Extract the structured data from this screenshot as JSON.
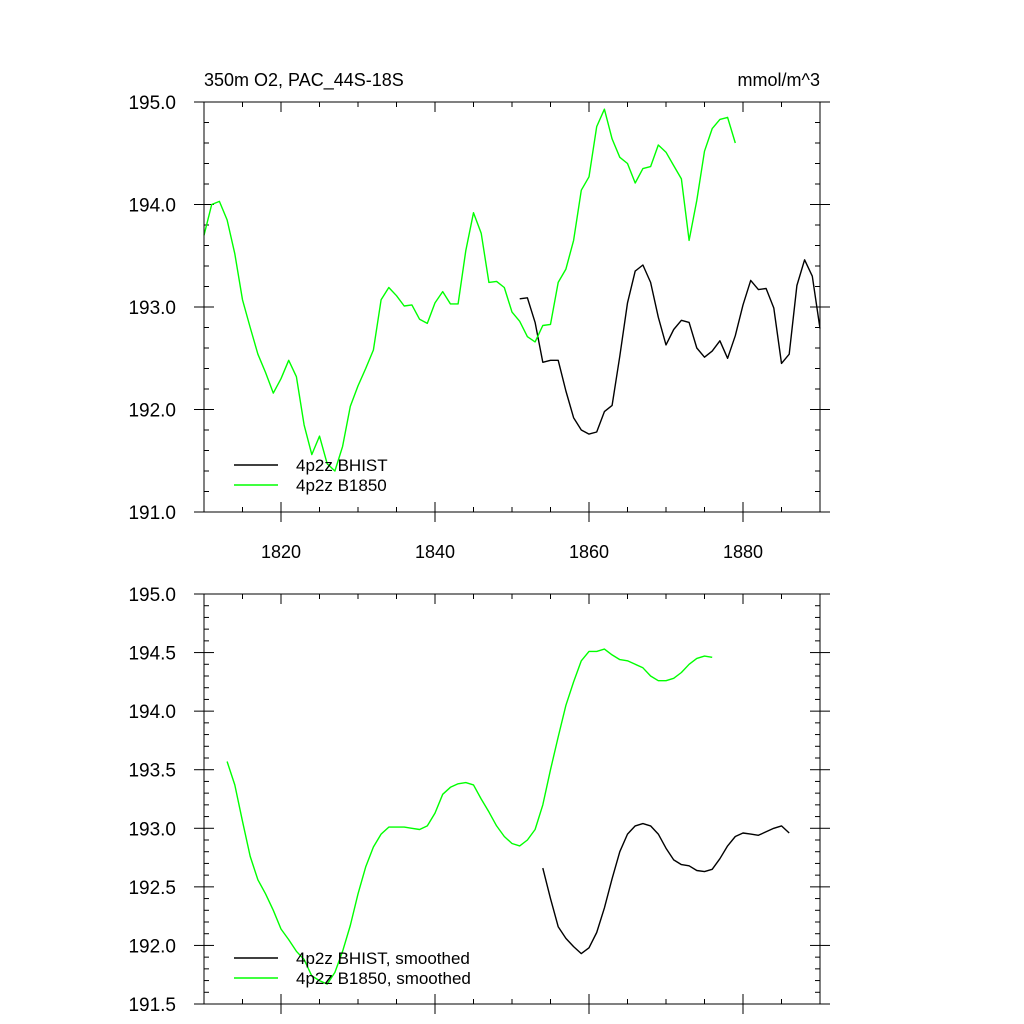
{
  "chart_data": [
    {
      "type": "line",
      "title_left": "350m O2, PAC_44S-18S",
      "title_right": "mmol/m^3",
      "xlim": [
        1810,
        1890
      ],
      "ylim": [
        191.0,
        195.0
      ],
      "xticks": [
        1820,
        1840,
        1860,
        1880
      ],
      "xtick_labels": [
        "1820",
        "1840",
        "1860",
        "1880"
      ],
      "yticks": [
        191.0,
        192.0,
        193.0,
        194.0,
        195.0
      ],
      "ytick_labels": [
        "191.0",
        "192.0",
        "193.0",
        "194.0",
        "195.0"
      ],
      "legend_position": "bottom-left",
      "series": [
        {
          "name": "4p2z BHIST",
          "color": "#000000",
          "x": [
            1851,
            1852,
            1853,
            1854,
            1855,
            1856,
            1857,
            1858,
            1859,
            1860,
            1861,
            1862,
            1863,
            1864,
            1865,
            1866,
            1867,
            1868,
            1869,
            1870,
            1871,
            1872,
            1873,
            1874,
            1875,
            1876,
            1877,
            1878,
            1879,
            1880,
            1881,
            1882,
            1883,
            1884,
            1885,
            1886,
            1887,
            1888,
            1889,
            1890
          ],
          "y": [
            193.08,
            193.09,
            192.85,
            192.46,
            192.48,
            192.48,
            192.18,
            191.92,
            191.8,
            191.76,
            191.78,
            191.98,
            192.04,
            192.52,
            193.04,
            193.35,
            193.41,
            193.24,
            192.9,
            192.63,
            192.78,
            192.87,
            192.85,
            192.6,
            192.51,
            192.57,
            192.67,
            192.5,
            192.72,
            193.02,
            193.26,
            193.17,
            193.18,
            192.99,
            192.45,
            192.54,
            193.21,
            193.46,
            193.3,
            192.79
          ]
        },
        {
          "name": "4p2z B1850",
          "color": "#00ff00",
          "x": [
            1810,
            1811,
            1812,
            1813,
            1814,
            1815,
            1816,
            1817,
            1818,
            1819,
            1820,
            1821,
            1822,
            1823,
            1824,
            1825,
            1826,
            1827,
            1828,
            1829,
            1830,
            1831,
            1832,
            1833,
            1834,
            1835,
            1836,
            1837,
            1838,
            1839,
            1840,
            1841,
            1842,
            1843,
            1844,
            1845,
            1846,
            1847,
            1848,
            1849,
            1850,
            1851,
            1852,
            1853,
            1854,
            1855,
            1856,
            1857,
            1858,
            1859,
            1860,
            1861,
            1862,
            1863,
            1864,
            1865,
            1866,
            1867,
            1868,
            1869,
            1870,
            1871,
            1872,
            1873,
            1874,
            1875,
            1876,
            1877,
            1878,
            1879
          ],
          "y": [
            193.7,
            194.0,
            194.03,
            193.85,
            193.52,
            193.07,
            192.8,
            192.54,
            192.36,
            192.16,
            192.3,
            192.48,
            192.32,
            191.85,
            191.56,
            191.74,
            191.47,
            191.4,
            191.64,
            192.03,
            192.23,
            192.4,
            192.58,
            193.07,
            193.19,
            193.11,
            193.01,
            193.02,
            192.88,
            192.84,
            193.04,
            193.15,
            193.03,
            193.03,
            193.55,
            193.92,
            193.72,
            193.24,
            193.25,
            193.19,
            192.95,
            192.86,
            192.71,
            192.66,
            192.82,
            192.83,
            193.24,
            193.37,
            193.65,
            194.14,
            194.27,
            194.76,
            194.93,
            194.64,
            194.46,
            194.4,
            194.21,
            194.35,
            194.37,
            194.58,
            194.51,
            194.38,
            194.25,
            193.65,
            194.04,
            194.52,
            194.74,
            194.83,
            194.85,
            194.6
          ]
        }
      ]
    },
    {
      "type": "line",
      "xlim": [
        1810,
        1890
      ],
      "ylim": [
        191.5,
        195.0
      ],
      "xticks": [
        1820,
        1840,
        1860,
        1880
      ],
      "yticks": [
        191.5,
        192.0,
        192.5,
        193.0,
        193.5,
        194.0,
        194.5,
        195.0
      ],
      "ytick_labels": [
        "191.5",
        "192.0",
        "192.5",
        "193.0",
        "193.5",
        "194.0",
        "194.5",
        "195.0"
      ],
      "legend_position": "bottom-left",
      "series": [
        {
          "name": "4p2z BHIST, smoothed",
          "color": "#000000",
          "x": [
            1854,
            1855,
            1856,
            1857,
            1858,
            1859,
            1860,
            1861,
            1862,
            1863,
            1864,
            1865,
            1866,
            1867,
            1868,
            1869,
            1870,
            1871,
            1872,
            1873,
            1874,
            1875,
            1876,
            1877,
            1878,
            1879,
            1880,
            1881,
            1882,
            1883,
            1884,
            1885,
            1886
          ],
          "y": [
            192.66,
            192.4,
            192.16,
            192.06,
            191.99,
            191.93,
            191.98,
            192.11,
            192.32,
            192.57,
            192.8,
            192.95,
            193.02,
            193.04,
            193.02,
            192.95,
            192.83,
            192.73,
            192.69,
            192.68,
            192.64,
            192.63,
            192.65,
            192.74,
            192.85,
            192.93,
            192.96,
            192.95,
            192.94,
            192.97,
            193.0,
            193.02,
            192.96
          ]
        },
        {
          "name": "4p2z B1850, smoothed",
          "color": "#00ff00",
          "x": [
            1813,
            1814,
            1815,
            1816,
            1817,
            1818,
            1819,
            1820,
            1821,
            1822,
            1823,
            1824,
            1825,
            1826,
            1827,
            1828,
            1829,
            1830,
            1831,
            1832,
            1833,
            1834,
            1835,
            1836,
            1837,
            1838,
            1839,
            1840,
            1841,
            1842,
            1843,
            1844,
            1845,
            1846,
            1847,
            1848,
            1849,
            1850,
            1851,
            1852,
            1853,
            1854,
            1855,
            1856,
            1857,
            1858,
            1859,
            1860,
            1861,
            1862,
            1863,
            1864,
            1865,
            1866,
            1867,
            1868,
            1869,
            1870,
            1871,
            1872,
            1873,
            1874,
            1875,
            1876
          ],
          "y": [
            193.57,
            193.37,
            193.06,
            192.76,
            192.56,
            192.44,
            192.3,
            192.14,
            192.05,
            191.95,
            191.88,
            191.74,
            191.7,
            191.67,
            191.77,
            191.95,
            192.17,
            192.44,
            192.67,
            192.84,
            192.95,
            193.01,
            193.01,
            193.01,
            193.0,
            192.99,
            193.02,
            193.13,
            193.29,
            193.35,
            193.38,
            193.39,
            193.37,
            193.25,
            193.14,
            193.02,
            192.93,
            192.87,
            192.85,
            192.9,
            192.99,
            193.2,
            193.5,
            193.78,
            194.05,
            194.25,
            194.43,
            194.51,
            194.51,
            194.53,
            194.48,
            194.44,
            194.43,
            194.4,
            194.37,
            194.3,
            194.26,
            194.26,
            194.28,
            194.33,
            194.4,
            194.45,
            194.47,
            194.46
          ]
        }
      ]
    }
  ]
}
